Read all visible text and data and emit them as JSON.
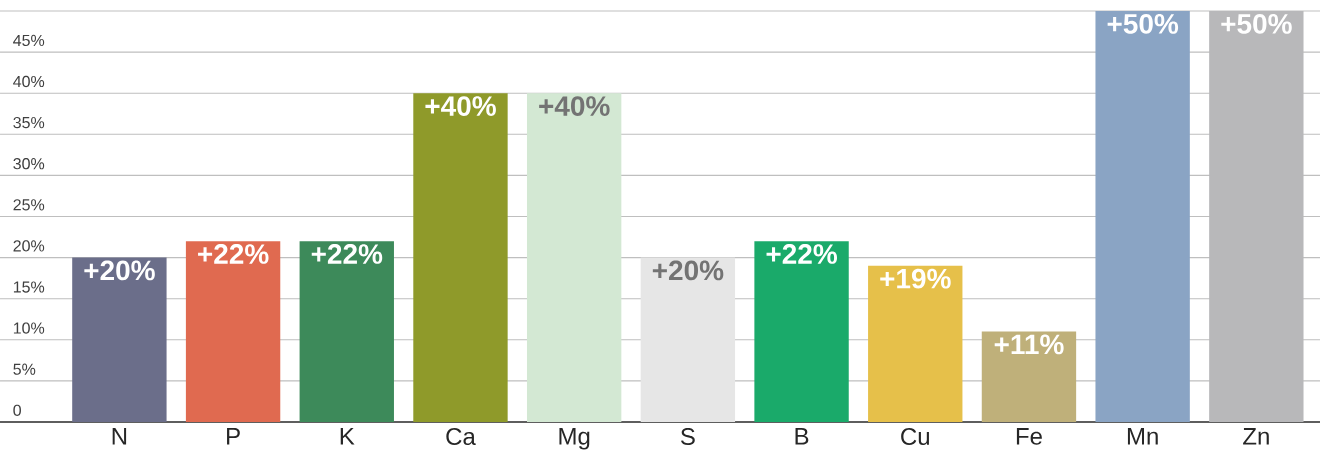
{
  "chart_data": {
    "type": "bar",
    "categories": [
      "N",
      "P",
      "K",
      "Ca",
      "Mg",
      "S",
      "B",
      "Cu",
      "Fe",
      "Mn",
      "Zn"
    ],
    "values": [
      20,
      22,
      22,
      40,
      40,
      20,
      22,
      19,
      11,
      50,
      50
    ],
    "colors": [
      "#6b6e8a",
      "#e06a50",
      "#3d8a5a",
      "#8f9a2a",
      "#d3e8d3",
      "#e6e6e6",
      "#1aaa6a",
      "#e6c04a",
      "#bfb07a",
      "#8aa4c4",
      "#b8b8ba"
    ],
    "value_labels": [
      "+20%",
      "+22%",
      "+22%",
      "+40%",
      "+40%",
      "+20%",
      "+22%",
      "+19%",
      "+11%",
      "+50%",
      "+50%"
    ],
    "ylim": [
      0,
      50
    ],
    "yticks": [
      {
        "value": 0,
        "label": "0"
      },
      {
        "value": 5,
        "label": "5%"
      },
      {
        "value": 10,
        "label": "10%"
      },
      {
        "value": 15,
        "label": "15%"
      },
      {
        "value": 20,
        "label": "20%"
      },
      {
        "value": 25,
        "label": "25%"
      },
      {
        "value": 30,
        "label": "30%"
      },
      {
        "value": 35,
        "label": "35%"
      },
      {
        "value": 40,
        "label": "40%"
      },
      {
        "value": 45,
        "label": "45%"
      },
      {
        "value": 50,
        "label": null
      }
    ],
    "grid": "y"
  }
}
